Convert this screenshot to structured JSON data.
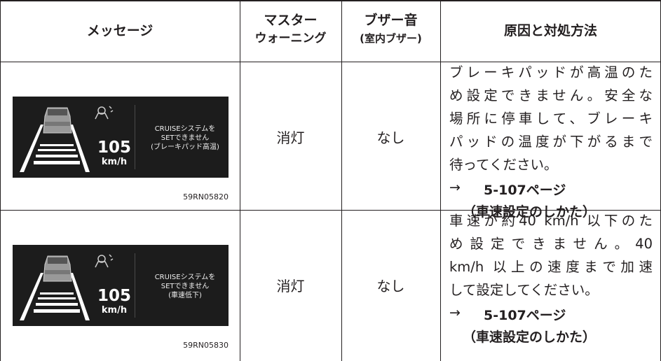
{
  "header": {
    "message": "メッセージ",
    "master_warning": [
      "マスター",
      "ウォーニング"
    ],
    "buzzer": [
      "ブザー音",
      "(室内ブザー)"
    ],
    "cause": "原因と対処方法"
  },
  "rows": [
    {
      "display": {
        "speed": "105",
        "unit": "km/h",
        "message": [
          "CRUISEシステムを",
          "SETできません",
          "(ブレーキパッド高温)"
        ]
      },
      "image_id": "59RN05820",
      "master_warning": "消灯",
      "buzzer": "なし",
      "cause": [
        "ブレーキパッドが高温のた",
        "め設定できません。安全な",
        "場所に停車して、ブレーキ",
        "パッドの温度が下がるまで",
        "待ってください。"
      ],
      "arrow": "→",
      "ref_page": "5-107ページ",
      "ref_title": "（車速設定のしかた）"
    },
    {
      "display": {
        "speed": "105",
        "unit": "km/h",
        "message": [
          "CRUISEシステムを",
          "SETできません",
          "(車速低下)"
        ]
      },
      "image_id": "59RN05830",
      "master_warning": "消灯",
      "buzzer": "なし",
      "cause": [
        "車速が約40 km/h 以下のた",
        "め設定できません。40",
        "km/h 以上の速度まで加速",
        "して設定してください。"
      ],
      "arrow": "→",
      "ref_page": "5-107ページ",
      "ref_title": "（車速設定のしかた）"
    }
  ]
}
